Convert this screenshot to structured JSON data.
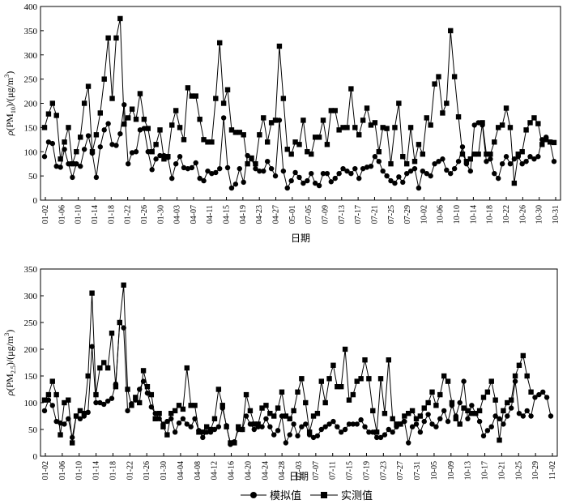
{
  "legend": {
    "simulated": "模拟值",
    "observed": "实测值"
  },
  "chart_data": [
    {
      "type": "line",
      "ylabel_parts": [
        "ρ(PM",
        "10",
        ")/(μg/m",
        "3",
        ")"
      ],
      "xlabel": "日期",
      "ylim": [
        0,
        400
      ],
      "yticks": [
        0,
        50,
        100,
        150,
        200,
        250,
        300,
        350,
        400
      ],
      "xticks": [
        "01-02",
        "01-06",
        "01-10",
        "01-14",
        "01-18",
        "01-22",
        "01-26",
        "01-30",
        "04-03",
        "04-07",
        "04-11",
        "04-15",
        "04-19",
        "04-23",
        "04-27",
        "05-01",
        "07-05",
        "07-09",
        "07-13",
        "07-17",
        "07-21",
        "07-25",
        "07-29",
        "10-02",
        "10-06",
        "10-10",
        "10-14",
        "10-18",
        "10-22",
        "10-26",
        "10-30",
        "10-31"
      ],
      "grid": false,
      "series": [
        {
          "name": "模拟值",
          "marker": "circle",
          "values": [
            90,
            120,
            117,
            70,
            68,
            105,
            75,
            47,
            75,
            70,
            105,
            133,
            97,
            47,
            110,
            145,
            158,
            115,
            113,
            137,
            197,
            75,
            98,
            100,
            145,
            148,
            100,
            63,
            85,
            92,
            92,
            88,
            45,
            75,
            90,
            67,
            65,
            67,
            77,
            45,
            40,
            60,
            55,
            57,
            65,
            170,
            67,
            25,
            33,
            65,
            37,
            92,
            85,
            65,
            60,
            60,
            80,
            65,
            50,
            165,
            60,
            25,
            40,
            57,
            47,
            35,
            40,
            55,
            35,
            30,
            55,
            55,
            38,
            45,
            55,
            65,
            60,
            55,
            65,
            45,
            65,
            68,
            70,
            90,
            80,
            60,
            50,
            40,
            35,
            48,
            37,
            55,
            60,
            65,
            25,
            60,
            55,
            50,
            75,
            80,
            85,
            62,
            55,
            65,
            80,
            110,
            75,
            60,
            155,
            160,
            155,
            80,
            85,
            55,
            45,
            75,
            90,
            75,
            85,
            90,
            75,
            80,
            90,
            85,
            90,
            125,
            130,
            120,
            80
          ],
          "x_range": [
            0,
            128
          ]
        },
        {
          "name": "实测值",
          "marker": "square",
          "values": [
            150,
            178,
            200,
            175,
            85,
            120,
            150,
            75,
            100,
            130,
            200,
            235,
            100,
            135,
            180,
            250,
            335,
            210,
            335,
            375,
            157,
            170,
            188,
            167,
            220,
            167,
            148,
            100,
            115,
            145,
            85,
            90,
            155,
            185,
            150,
            125,
            232,
            215,
            215,
            167,
            125,
            120,
            120,
            210,
            325,
            200,
            228,
            145,
            140,
            140,
            135,
            75,
            87,
            75,
            135,
            170,
            120,
            160,
            165,
            318,
            210,
            105,
            95,
            120,
            115,
            165,
            100,
            95,
            130,
            130,
            165,
            115,
            185,
            185,
            145,
            150,
            150,
            230,
            150,
            135,
            165,
            190,
            155,
            160,
            100,
            150,
            148,
            75,
            150,
            200,
            90,
            75,
            150,
            80,
            115,
            95,
            170,
            155,
            240,
            255,
            180,
            200,
            350,
            255,
            172,
            95,
            80,
            85,
            95,
            95,
            160,
            95,
            95,
            120,
            150,
            155,
            190,
            150,
            35,
            95,
            100,
            145,
            160,
            170,
            158,
            115,
            125,
            120,
            119
          ],
          "x_range": [
            0,
            128
          ]
        }
      ]
    },
    {
      "type": "line",
      "ylabel_parts": [
        "ρ(PM",
        "2.5",
        ")/(μg/m",
        "3",
        ")"
      ],
      "xlabel": "日期",
      "ylim": [
        0,
        350
      ],
      "yticks": [
        0,
        50,
        100,
        150,
        200,
        250,
        300,
        350
      ],
      "xticks": [
        "01-02",
        "01-06",
        "01-10",
        "01-14",
        "01-18",
        "01-22",
        "01-26",
        "01-30",
        "04-04",
        "04-08",
        "04-12",
        "04-16",
        "04-20",
        "04-24",
        "04-28",
        "07-03",
        "07-07",
        "07-11",
        "07-15",
        "07-19",
        "07-23",
        "07-27",
        "07-31",
        "10-05",
        "10-09",
        "10-13",
        "10-17",
        "10-21",
        "10-25",
        "10-29",
        "11-02"
      ],
      "grid": false,
      "series": [
        {
          "name": "模拟值",
          "marker": "circle",
          "values": [
            85,
            105,
            95,
            65,
            62,
            60,
            70,
            35,
            75,
            70,
            75,
            82,
            205,
            100,
            100,
            97,
            103,
            108,
            135,
            250,
            240,
            85,
            98,
            105,
            125,
            140,
            118,
            92,
            80,
            70,
            60,
            65,
            70,
            45,
            62,
            70,
            60,
            55,
            70,
            48,
            35,
            45,
            45,
            50,
            55,
            90,
            57,
            22,
            27,
            50,
            50,
            75,
            60,
            50,
            55,
            55,
            70,
            55,
            40,
            48,
            75,
            25,
            40,
            60,
            38,
            55,
            60,
            40,
            35,
            38,
            50,
            55,
            60,
            65,
            55,
            45,
            50,
            60,
            60,
            60,
            68,
            55,
            45,
            45,
            35,
            35,
            40,
            50,
            45,
            55,
            60,
            65,
            25,
            55,
            60,
            45,
            65,
            78,
            60,
            55,
            70,
            85,
            65,
            95,
            75,
            100,
            140,
            70,
            95,
            80,
            65,
            38,
            48,
            55,
            75,
            70,
            60,
            75,
            90,
            140,
            80,
            75,
            85,
            75,
            110,
            115,
            120,
            110,
            75
          ],
          "x_range": [
            0,
            128
          ]
        },
        {
          "name": "实测值",
          "marker": "square",
          "values": [
            105,
            115,
            140,
            115,
            40,
            100,
            105,
            25,
            75,
            85,
            80,
            150,
            305,
            115,
            165,
            175,
            165,
            230,
            130,
            250,
            320,
            125,
            95,
            110,
            100,
            160,
            130,
            115,
            70,
            80,
            55,
            40,
            80,
            85,
            95,
            88,
            165,
            95,
            95,
            45,
            45,
            55,
            50,
            70,
            125,
            95,
            55,
            25,
            25,
            55,
            50,
            115,
            85,
            60,
            60,
            90,
            95,
            80,
            75,
            90,
            120,
            75,
            70,
            85,
            120,
            145,
            100,
            45,
            75,
            80,
            140,
            100,
            145,
            170,
            130,
            130,
            200,
            105,
            115,
            140,
            145,
            180,
            145,
            85,
            45,
            145,
            80,
            180,
            70,
            60,
            60,
            75,
            80,
            85,
            70,
            75,
            90,
            100,
            120,
            95,
            115,
            150,
            140,
            100,
            70,
            60,
            90,
            85,
            80,
            80,
            85,
            110,
            120,
            140,
            105,
            30,
            85,
            100,
            105,
            150,
            170,
            188,
            150,
            120
          ],
          "x_range": [
            0,
            128
          ]
        }
      ]
    }
  ]
}
